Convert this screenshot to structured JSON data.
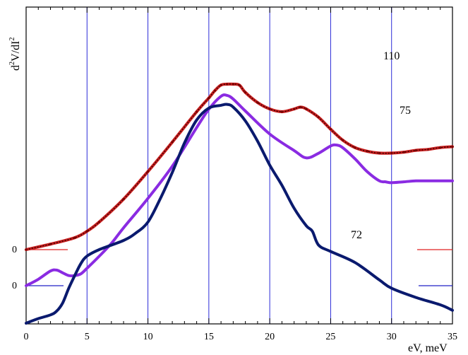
{
  "chart_data": {
    "type": "line",
    "ylabel_parts": {
      "d": "d",
      "sup1": "2",
      "mid": "V/dI",
      "sup2": "2"
    },
    "xlabel": "eV, meV",
    "xlim": [
      0,
      35
    ],
    "xticks": [
      0,
      5,
      10,
      15,
      20,
      25,
      30,
      35
    ],
    "grid_vertical_at": [
      5,
      10,
      15,
      20,
      25,
      30
    ],
    "zero_labels": [
      "0",
      "0"
    ],
    "series": [
      {
        "name": "110",
        "color": "#c81e1e",
        "zero_marker_color": "#e02020",
        "x": [
          0,
          2,
          4,
          5,
          6,
          8,
          10,
          12,
          14,
          15,
          15.5,
          16,
          16.5,
          17,
          17.5,
          18,
          19,
          20,
          21,
          22,
          22.5,
          23,
          24,
          25,
          26,
          27,
          28,
          29,
          30,
          31,
          32,
          33,
          34,
          35
        ],
        "y": [
          0,
          0.06,
          0.13,
          0.2,
          0.3,
          0.55,
          0.85,
          1.17,
          1.5,
          1.65,
          1.73,
          1.79,
          1.8,
          1.8,
          1.79,
          1.71,
          1.6,
          1.53,
          1.5,
          1.53,
          1.55,
          1.53,
          1.44,
          1.31,
          1.19,
          1.11,
          1.07,
          1.05,
          1.05,
          1.06,
          1.08,
          1.09,
          1.11,
          1.12
        ]
      },
      {
        "name": "75",
        "color": "#8a2be2",
        "zero_marker_color": "#2020c8",
        "x": [
          0,
          1,
          2,
          2.5,
          3,
          3.5,
          4,
          4.5,
          5,
          6,
          7,
          8,
          10,
          12,
          14,
          15,
          16,
          16.5,
          17,
          18,
          20,
          22,
          23,
          24,
          25,
          25.5,
          26,
          27,
          28,
          29,
          29.5,
          30,
          31,
          32,
          33,
          35
        ],
        "y": [
          0,
          0.07,
          0.16,
          0.17,
          0.14,
          0.11,
          0.11,
          0.13,
          0.19,
          0.32,
          0.46,
          0.63,
          0.95,
          1.3,
          1.72,
          1.92,
          2.06,
          2.07,
          2.03,
          1.9,
          1.65,
          1.47,
          1.39,
          1.44,
          1.52,
          1.53,
          1.5,
          1.38,
          1.24,
          1.14,
          1.13,
          1.12,
          1.13,
          1.14,
          1.14,
          1.14
        ]
      },
      {
        "name": "72",
        "color": "#0a1a6e",
        "x": [
          0,
          1,
          2,
          2.5,
          3,
          3.5,
          4,
          4.5,
          5,
          6,
          8,
          9,
          10,
          11,
          12,
          13,
          14,
          15,
          16,
          16.5,
          17,
          18,
          19,
          20,
          21,
          22,
          23,
          23.5,
          24,
          25,
          27,
          29,
          30,
          32,
          34,
          35
        ],
        "y": [
          0,
          0.05,
          0.09,
          0.13,
          0.22,
          0.38,
          0.52,
          0.65,
          0.73,
          0.8,
          0.9,
          0.98,
          1.1,
          1.35,
          1.64,
          1.96,
          2.21,
          2.34,
          2.37,
          2.38,
          2.35,
          2.2,
          1.98,
          1.72,
          1.5,
          1.25,
          1.06,
          1.0,
          0.85,
          0.78,
          0.66,
          0.47,
          0.38,
          0.28,
          0.2,
          0.14
        ]
      }
    ]
  }
}
